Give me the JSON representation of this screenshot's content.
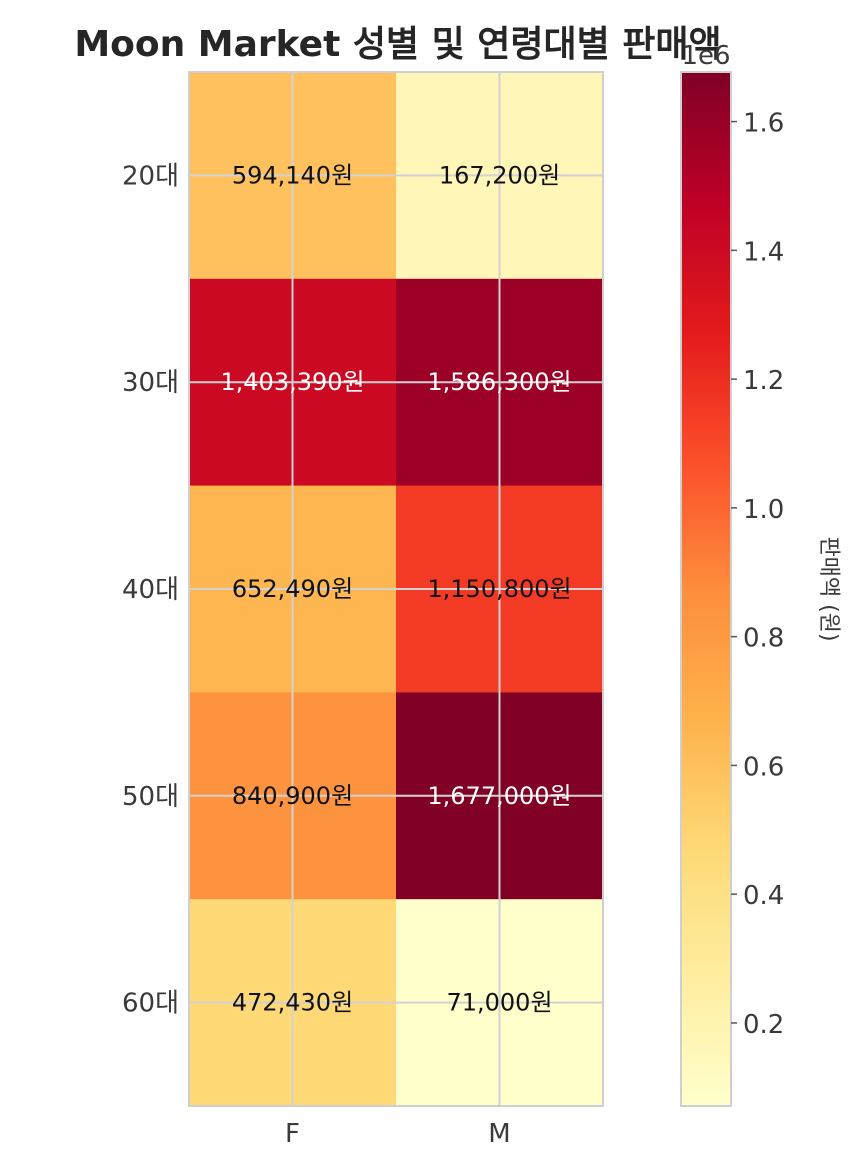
{
  "chart_data": {
    "type": "heatmap",
    "title": "Moon Market 성별 및 연령대별 판매액",
    "rows": [
      "20대",
      "30대",
      "40대",
      "50대",
      "60대"
    ],
    "columns": [
      "F",
      "M"
    ],
    "values": [
      [
        594140,
        167200
      ],
      [
        1403390,
        1586300
      ],
      [
        652490,
        1150800
      ],
      [
        840900,
        1677000
      ],
      [
        472430,
        71000
      ]
    ],
    "cell_labels": [
      [
        "594,140원",
        "167,200원"
      ],
      [
        "1,403,390원",
        "1,586,300원"
      ],
      [
        "652,490원",
        "1,150,800원"
      ],
      [
        "840,900원",
        "1,677,000원"
      ],
      [
        "472,430원",
        "71,000원"
      ]
    ],
    "colormap": "YlOrRd",
    "colormap_stops": [
      "#ffffcc",
      "#ffeda0",
      "#fed976",
      "#feb24c",
      "#fd8d3c",
      "#fc4e2a",
      "#e31a1c",
      "#bd0026",
      "#800026"
    ],
    "vmin": 71000,
    "vmax": 1677000,
    "colorbar": {
      "label": "판매액 (원)",
      "offset_text": "1e6",
      "ticks": [
        0.2,
        0.4,
        0.6,
        0.8,
        1.0,
        1.2,
        1.4,
        1.6
      ],
      "tick_labels": [
        "0.2",
        "0.4",
        "0.6",
        "0.8",
        "1.0",
        "1.2",
        "1.4",
        "1.6"
      ],
      "scale": 1000000
    },
    "grid": true
  }
}
